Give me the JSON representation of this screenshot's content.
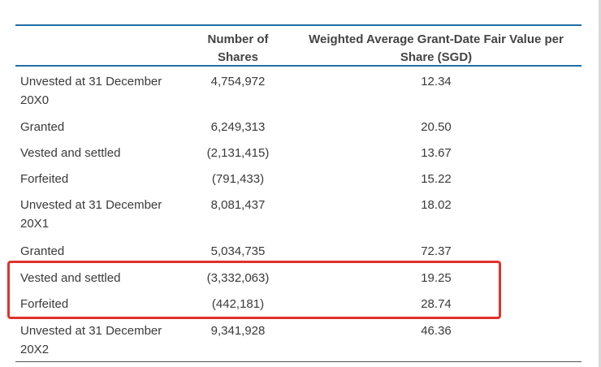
{
  "table": {
    "headers": {
      "shares": "Number of Shares",
      "value": "Weighted Average Grant-Date Fair Value per Share (SGD)"
    },
    "rows": [
      {
        "label": "Unvested at 31 December 20X0",
        "shares": "4,754,972",
        "value": "12.34"
      },
      {
        "label": "Granted",
        "shares": "6,249,313",
        "value": "20.50"
      },
      {
        "label": "Vested and settled",
        "shares": "(2,131,415)",
        "value": "13.67"
      },
      {
        "label": "Forfeited",
        "shares": "(791,433)",
        "value": "15.22"
      },
      {
        "label": "Unvested at 31 December 20X1",
        "shares": "8,081,437",
        "value": "18.02"
      },
      {
        "label": "Granted",
        "shares": "5,034,735",
        "value": "72.37"
      },
      {
        "label": "Vested and settled",
        "shares": "(3,332,063)",
        "value": "19.25"
      },
      {
        "label": "Forfeited",
        "shares": "(442,181)",
        "value": "28.74"
      },
      {
        "label": "Unvested at 31 December 20X2",
        "shares": "9,341,928",
        "value": "46.36"
      }
    ]
  },
  "annotation": {
    "highlight_color": "#e0322a",
    "rule_color": "#1f6fa8"
  }
}
